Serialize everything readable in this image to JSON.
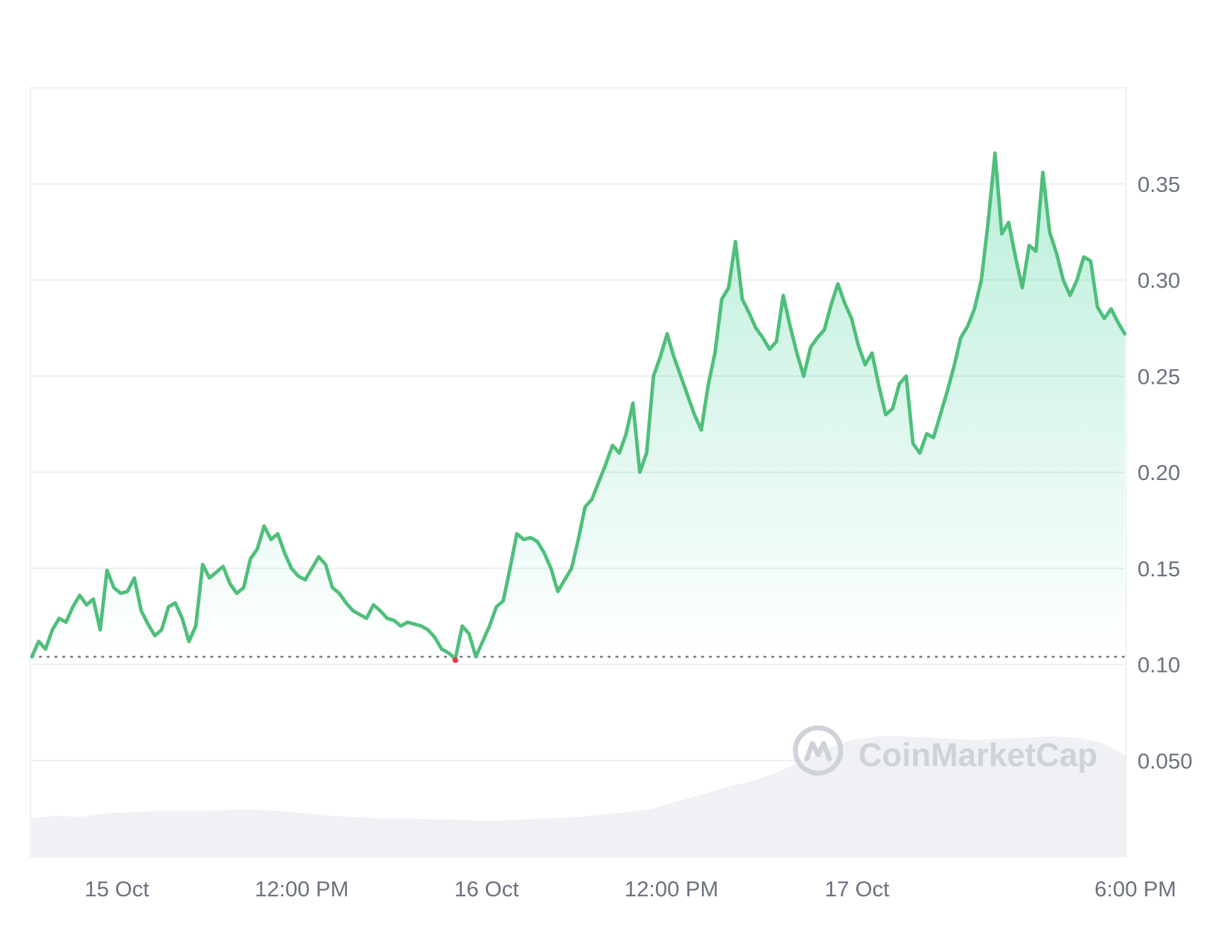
{
  "chart_data": {
    "type": "area",
    "title": "",
    "xlabel": "",
    "ylabel": "",
    "x_range": [
      "2024-10-14 15:00",
      "2024-10-17 18:00"
    ],
    "ylim": [
      0.0,
      0.4
    ],
    "grid": true,
    "x_ticks": [
      "15 Oct",
      "12:00 PM",
      "16 Oct",
      "12:00 PM",
      "17 Oct",
      "6:00 PM"
    ],
    "y_ticks": [
      "0.050",
      "0.10",
      "0.15",
      "0.20",
      "0.25",
      "0.30",
      "0.35"
    ],
    "y_tick_values": [
      0.05,
      0.1,
      0.15,
      0.2,
      0.25,
      0.3,
      0.35
    ],
    "baseline": 0.104,
    "colors": {
      "up": "#16c784",
      "down": "#ea3943",
      "line": "#4fbf7b",
      "volume": "#eff1f5"
    },
    "series": [
      {
        "values": [
          0.104,
          0.112,
          0.108,
          0.118,
          0.124,
          0.122,
          0.13,
          0.136,
          0.131,
          0.134,
          0.118,
          0.149,
          0.14,
          0.137,
          0.138,
          0.145,
          0.128,
          0.121,
          0.115,
          0.118,
          0.13,
          0.132,
          0.124,
          0.112,
          0.12,
          0.152,
          0.145,
          0.148,
          0.151,
          0.142,
          0.137,
          0.14,
          0.155,
          0.16,
          0.172,
          0.165,
          0.168,
          0.158,
          0.15,
          0.146,
          0.144,
          0.15,
          0.156,
          0.152,
          0.14,
          0.137,
          0.132,
          0.128,
          0.126,
          0.124,
          0.131,
          0.128,
          0.124,
          0.123,
          0.12,
          0.122,
          0.121,
          0.12,
          0.118,
          0.114,
          0.108,
          0.106,
          0.103,
          0.12,
          0.116,
          0.104,
          0.112,
          0.12,
          0.13,
          0.133,
          0.15,
          0.168,
          0.165,
          0.166,
          0.164,
          0.158,
          0.15,
          0.138,
          0.144,
          0.15,
          0.165,
          0.182,
          0.186,
          0.195,
          0.204,
          0.214,
          0.21,
          0.22,
          0.236,
          0.2,
          0.21,
          0.25,
          0.26,
          0.272,
          0.26,
          0.25,
          0.24,
          0.23,
          0.222,
          0.245,
          0.262,
          0.29,
          0.296,
          0.32,
          0.29,
          0.283,
          0.275,
          0.27,
          0.264,
          0.268,
          0.292,
          0.276,
          0.262,
          0.25,
          0.265,
          0.27,
          0.274,
          0.287,
          0.298,
          0.288,
          0.28,
          0.266,
          0.256,
          0.262,
          0.245,
          0.23,
          0.233,
          0.246,
          0.25,
          0.215,
          0.21,
          0.22,
          0.218,
          0.23,
          0.242,
          0.255,
          0.27,
          0.276,
          0.285,
          0.3,
          0.33,
          0.366,
          0.324,
          0.33,
          0.312,
          0.296,
          0.318,
          0.315,
          0.356,
          0.325,
          0.314,
          0.3,
          0.292,
          0.3,
          0.312,
          0.31,
          0.286,
          0.28,
          0.285,
          0.278,
          0.272
        ]
      }
    ],
    "volume_relative": [
      0.32,
      0.34,
      0.33,
      0.36,
      0.37,
      0.38,
      0.38,
      0.38,
      0.39,
      0.39,
      0.38,
      0.36,
      0.34,
      0.33,
      0.32,
      0.32,
      0.31,
      0.31,
      0.3,
      0.3,
      0.31,
      0.32,
      0.33,
      0.35,
      0.37,
      0.4,
      0.46,
      0.52,
      0.58,
      0.63,
      0.7,
      0.8,
      0.9,
      0.97,
      1.0,
      1.0,
      0.99,
      0.98,
      0.97,
      0.98,
      0.99,
      1.0,
      0.99,
      0.95,
      0.84
    ]
  },
  "watermark": {
    "text": "CoinMarketCap",
    "icon": "coinmarketcap-logo-icon"
  }
}
